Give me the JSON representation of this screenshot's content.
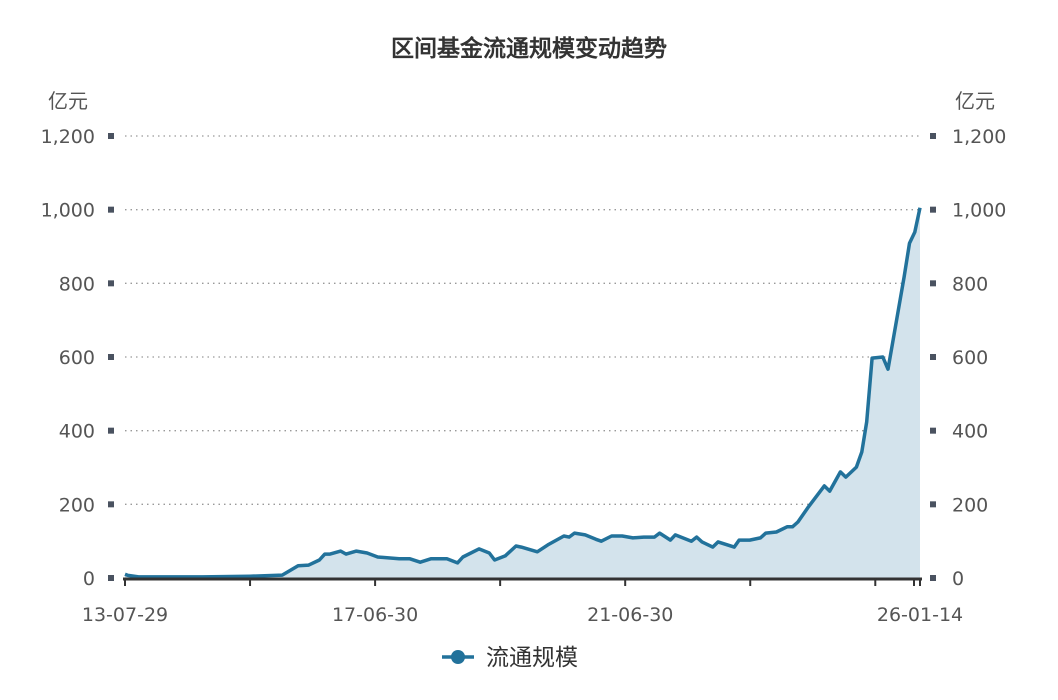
{
  "chart_data": {
    "type": "area",
    "title": "区间基金流通规模变动趋势",
    "y_unit_left": "亿元",
    "y_unit_right": "亿元",
    "ylim": [
      0,
      1200
    ],
    "yticks": [
      "0",
      "200",
      "400",
      "600",
      "800",
      "1,000",
      "1,200"
    ],
    "ytick_values": [
      0,
      200,
      400,
      600,
      800,
      1000,
      1200
    ],
    "xlim": [
      "2013-07-29",
      "2026-01-14"
    ],
    "xtick_labels": [
      "13-07-29",
      "17-06-30",
      "21-06-30",
      "26-01-14"
    ],
    "xtick_dates": [
      "2013-07-29",
      "2017-06-30",
      "2021-06-30",
      "2026-01-14"
    ],
    "grid": true,
    "legend_position": "bottom",
    "colors": {
      "line": "#22729b",
      "fill": "#d3e3ec",
      "grid": "#999999",
      "axis": "#333333"
    },
    "series": [
      {
        "name": "流通规模",
        "x": [
          "2013-07-29",
          "2013-08",
          "2013-10",
          "2014-10",
          "2015-07",
          "2016-01",
          "2016-04",
          "2016-06",
          "2016-08",
          "2016-09",
          "2016-10",
          "2016-12",
          "2017-01",
          "2017-03",
          "2017-05",
          "2017-07",
          "2017-11",
          "2018-01",
          "2018-03",
          "2018-05",
          "2018-08",
          "2018-10",
          "2018-11",
          "2019-02",
          "2019-04",
          "2019-05",
          "2019-07",
          "2019-09",
          "2019-10",
          "2020-01",
          "2020-03",
          "2020-06",
          "2020-07",
          "2020-08",
          "2020-10",
          "2020-12",
          "2021-01",
          "2021-03",
          "2021-05",
          "2021-07",
          "2021-09",
          "2021-11",
          "2021-12",
          "2022-02",
          "2022-03",
          "2022-06",
          "2022-07",
          "2022-08",
          "2022-10",
          "2022-11",
          "2023-02",
          "2023-03",
          "2023-05",
          "2023-07",
          "2023-08",
          "2023-10",
          "2023-12",
          "2024-01",
          "2024-02",
          "2024-04",
          "2024-07",
          "2024-08",
          "2024-10",
          "2024-11",
          "2025-01",
          "2025-02",
          "2025-03",
          "2025-04",
          "2025-06",
          "2025-07",
          "2025-10",
          "2025-11",
          "2025-12",
          "2026-01-14"
        ],
        "values": [
          10,
          7,
          3,
          3,
          5,
          8,
          33,
          35,
          49,
          65,
          65,
          73,
          65,
          73,
          68,
          57,
          52,
          52,
          43,
          52,
          52,
          41,
          57,
          79,
          68,
          49,
          60,
          87,
          84,
          71,
          90,
          114,
          111,
          122,
          117,
          105,
          100,
          114,
          114,
          109,
          111,
          111,
          122,
          103,
          117,
          100,
          111,
          98,
          84,
          98,
          84,
          103,
          103,
          109,
          122,
          125,
          139,
          139,
          152,
          193,
          250,
          236,
          288,
          274,
          301,
          342,
          424,
          597,
          600,
          567,
          817,
          909,
          939,
          1005
        ]
      }
    ]
  }
}
